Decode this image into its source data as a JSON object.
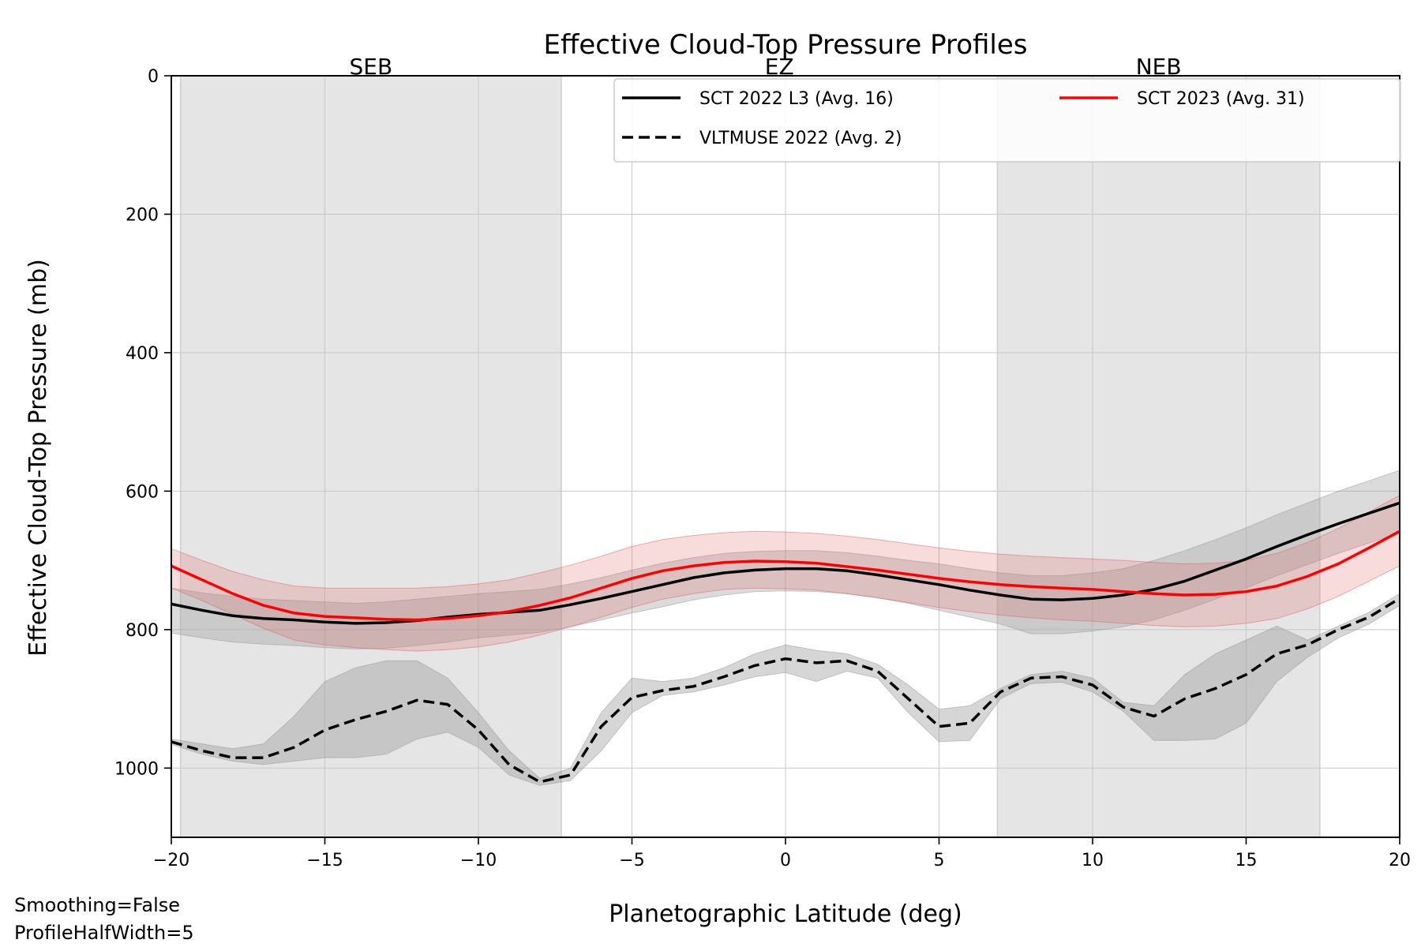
{
  "chart_data": {
    "type": "line",
    "title": "Effective Cloud-Top Pressure Profiles",
    "xlabel": "Planetographic Latitude (deg)",
    "ylabel": "Effective Cloud-Top Pressure (mb)",
    "xlim": [
      -20,
      20
    ],
    "ylim": [
      1100,
      0
    ],
    "y_inverted": true,
    "grid": true,
    "x_ticks": [
      -20,
      -15,
      -10,
      -5,
      0,
      5,
      10,
      15,
      20
    ],
    "x_tick_labels": [
      "−20",
      "−15",
      "−10",
      "−5",
      "0",
      "5",
      "10",
      "15",
      "20"
    ],
    "y_ticks": [
      0,
      200,
      400,
      600,
      800,
      1000
    ],
    "y_tick_labels": [
      "0",
      "200",
      "400",
      "600",
      "800",
      "1000"
    ],
    "regions": [
      {
        "name": "SEB",
        "x0": -19.7,
        "x1": -7.3,
        "shaded": true,
        "color": "#e5e5e5"
      },
      {
        "name": "EZ",
        "x0": -7.3,
        "x1": 6.9,
        "shaded": false
      },
      {
        "name": "NEB",
        "x0": 6.9,
        "x1": 17.4,
        "shaded": true,
        "color": "#e5e5e5"
      }
    ],
    "legend_position": "top-right",
    "legend_columns": 2,
    "series": [
      {
        "name": "SCT 2022 L3 (Avg. 16)",
        "color": "#000000",
        "dash": "solid",
        "band_color": "#999999",
        "band_opacity": 0.35,
        "x": [
          -20,
          -19,
          -18,
          -17,
          -16,
          -15,
          -14,
          -13,
          -12,
          -11,
          -10,
          -9,
          -8,
          -7,
          -6,
          -5,
          -4,
          -3,
          -2,
          -1,
          0,
          1,
          2,
          3,
          4,
          5,
          6,
          7,
          8,
          9,
          10,
          11,
          12,
          13,
          14,
          15,
          16,
          17,
          18,
          19,
          20
        ],
        "y": [
          763,
          772,
          780,
          784,
          786,
          789,
          791,
          790,
          787,
          782,
          778,
          775,
          772,
          764,
          755,
          745,
          735,
          725,
          718,
          714,
          712,
          712,
          715,
          721,
          728,
          735,
          743,
          750,
          756,
          757,
          755,
          750,
          742,
          730,
          714,
          698,
          680,
          663,
          647,
          632,
          617
        ],
        "lower": [
          740,
          747,
          752,
          756,
          758,
          760,
          762,
          760,
          756,
          752,
          748,
          745,
          742,
          734,
          725,
          714,
          704,
          696,
          690,
          687,
          686,
          686,
          689,
          694,
          700,
          705,
          712,
          718,
          722,
          722,
          718,
          712,
          700,
          686,
          670,
          653,
          634,
          617,
          600,
          585,
          570
        ],
        "upper": [
          805,
          812,
          818,
          821,
          823,
          826,
          828,
          827,
          823,
          818,
          812,
          808,
          804,
          796,
          786,
          776,
          767,
          757,
          750,
          745,
          744,
          745,
          748,
          754,
          762,
          772,
          782,
          792,
          806,
          806,
          802,
          796,
          786,
          772,
          756,
          740,
          722,
          706,
          690,
          675,
          660
        ]
      },
      {
        "name": "SCT 2023 (Avg. 31)",
        "color": "#ff0000",
        "dash": "solid",
        "band_color": "#e06060",
        "band_opacity": 0.22,
        "x": [
          -20,
          -19,
          -18,
          -17,
          -16,
          -15,
          -14,
          -13,
          -12,
          -11,
          -10,
          -9,
          -8,
          -7,
          -6,
          -5,
          -4,
          -3,
          -2,
          -1,
          0,
          1,
          2,
          3,
          4,
          5,
          6,
          7,
          8,
          9,
          10,
          11,
          12,
          13,
          14,
          15,
          16,
          17,
          18,
          19,
          20
        ],
        "y": [
          708,
          728,
          748,
          765,
          776,
          781,
          783,
          785,
          786,
          784,
          780,
          774,
          765,
          754,
          740,
          726,
          715,
          708,
          703,
          701,
          702,
          704,
          709,
          714,
          720,
          726,
          731,
          735,
          738,
          740,
          742,
          745,
          748,
          750,
          749,
          745,
          737,
          723,
          705,
          682,
          658
        ],
        "lower": [
          683,
          700,
          716,
          728,
          737,
          740,
          740,
          740,
          740,
          738,
          734,
          728,
          718,
          707,
          694,
          680,
          670,
          664,
          660,
          658,
          659,
          661,
          665,
          670,
          676,
          682,
          687,
          691,
          694,
          696,
          698,
          700,
          703,
          705,
          704,
          700,
          690,
          674,
          654,
          630,
          606
        ],
        "upper": [
          740,
          758,
          778,
          798,
          815,
          822,
          826,
          829,
          831,
          829,
          825,
          818,
          808,
          796,
          782,
          768,
          756,
          748,
          742,
          740,
          741,
          743,
          748,
          754,
          761,
          768,
          774,
          779,
          783,
          786,
          788,
          791,
          794,
          796,
          795,
          791,
          784,
          770,
          752,
          730,
          708
        ]
      },
      {
        "name": "VLTMUSE 2022 (Avg. 2)",
        "color": "#000000",
        "dash": "dashed",
        "band_color": "#999999",
        "band_opacity": 0.4,
        "x": [
          -20,
          -19,
          -18,
          -17,
          -16,
          -15,
          -14,
          -13,
          -12,
          -11,
          -10,
          -9,
          -8,
          -7,
          -6,
          -5,
          -4,
          -3,
          -2,
          -1,
          0,
          1,
          2,
          3,
          4,
          5,
          6,
          7,
          8,
          9,
          10,
          11,
          12,
          13,
          14,
          15,
          16,
          17,
          18,
          19,
          20
        ],
        "y": [
          962,
          975,
          985,
          985,
          970,
          945,
          930,
          918,
          902,
          908,
          945,
          995,
          1020,
          1010,
          940,
          898,
          888,
          882,
          868,
          852,
          842,
          848,
          845,
          860,
          900,
          940,
          935,
          890,
          870,
          868,
          880,
          912,
          925,
          900,
          885,
          865,
          835,
          822,
          800,
          782,
          755
        ],
        "lower": [
          958,
          965,
          972,
          965,
          925,
          875,
          855,
          845,
          845,
          870,
          920,
          975,
          1015,
          1000,
          920,
          870,
          875,
          870,
          855,
          835,
          822,
          830,
          835,
          850,
          880,
          915,
          910,
          885,
          865,
          860,
          870,
          905,
          910,
          865,
          835,
          815,
          795,
          815,
          795,
          775,
          748
        ],
        "upper": [
          966,
          980,
          990,
          995,
          990,
          985,
          985,
          980,
          958,
          948,
          970,
          1010,
          1025,
          1018,
          975,
          920,
          895,
          890,
          880,
          868,
          862,
          875,
          860,
          870,
          920,
          962,
          960,
          900,
          878,
          876,
          890,
          918,
          960,
          960,
          958,
          935,
          875,
          840,
          812,
          792,
          765
        ]
      }
    ],
    "notes": [
      "Smoothing=False",
      "ProfileHalfWidth=5"
    ]
  }
}
